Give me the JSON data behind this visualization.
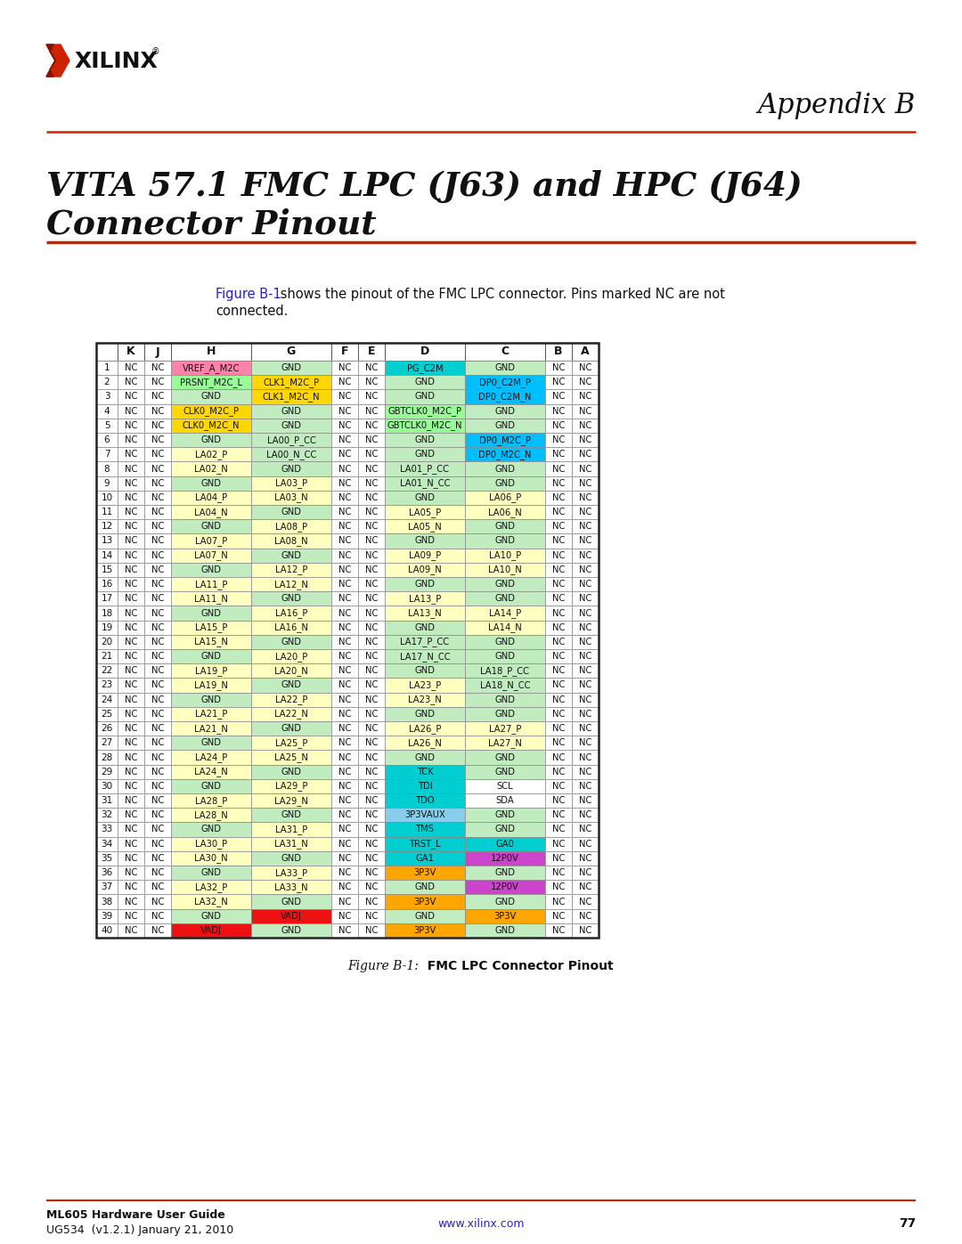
{
  "col_headers": [
    "K",
    "J",
    "H",
    "G",
    "F",
    "E",
    "D",
    "C",
    "B",
    "A"
  ],
  "rows": [
    [
      1,
      "NC",
      "NC",
      "VREF_A_M2C",
      "GND",
      "NC",
      "NC",
      "PG_C2M",
      "GND",
      "NC",
      "NC"
    ],
    [
      2,
      "NC",
      "NC",
      "PRSNT_M2C_L",
      "CLK1_M2C_P",
      "NC",
      "NC",
      "GND",
      "DP0_C2M_P",
      "NC",
      "NC"
    ],
    [
      3,
      "NC",
      "NC",
      "GND",
      "CLK1_M2C_N",
      "NC",
      "NC",
      "GND",
      "DP0_C2M_N",
      "NC",
      "NC"
    ],
    [
      4,
      "NC",
      "NC",
      "CLK0_M2C_P",
      "GND",
      "NC",
      "NC",
      "GBTCLK0_M2C_P",
      "GND",
      "NC",
      "NC"
    ],
    [
      5,
      "NC",
      "NC",
      "CLK0_M2C_N",
      "GND",
      "NC",
      "NC",
      "GBTCLK0_M2C_N",
      "GND",
      "NC",
      "NC"
    ],
    [
      6,
      "NC",
      "NC",
      "GND",
      "LA00_P_CC",
      "NC",
      "NC",
      "GND",
      "DP0_M2C_P",
      "NC",
      "NC"
    ],
    [
      7,
      "NC",
      "NC",
      "LA02_P",
      "LA00_N_CC",
      "NC",
      "NC",
      "GND",
      "DP0_M2C_N",
      "NC",
      "NC"
    ],
    [
      8,
      "NC",
      "NC",
      "LA02_N",
      "GND",
      "NC",
      "NC",
      "LA01_P_CC",
      "GND",
      "NC",
      "NC"
    ],
    [
      9,
      "NC",
      "NC",
      "GND",
      "LA03_P",
      "NC",
      "NC",
      "LA01_N_CC",
      "GND",
      "NC",
      "NC"
    ],
    [
      10,
      "NC",
      "NC",
      "LA04_P",
      "LA03_N",
      "NC",
      "NC",
      "GND",
      "LA06_P",
      "NC",
      "NC"
    ],
    [
      11,
      "NC",
      "NC",
      "LA04_N",
      "GND",
      "NC",
      "NC",
      "LA05_P",
      "LA06_N",
      "NC",
      "NC"
    ],
    [
      12,
      "NC",
      "NC",
      "GND",
      "LA08_P",
      "NC",
      "NC",
      "LA05_N",
      "GND",
      "NC",
      "NC"
    ],
    [
      13,
      "NC",
      "NC",
      "LA07_P",
      "LA08_N",
      "NC",
      "NC",
      "GND",
      "GND",
      "NC",
      "NC"
    ],
    [
      14,
      "NC",
      "NC",
      "LA07_N",
      "GND",
      "NC",
      "NC",
      "LA09_P",
      "LA10_P",
      "NC",
      "NC"
    ],
    [
      15,
      "NC",
      "NC",
      "GND",
      "LA12_P",
      "NC",
      "NC",
      "LA09_N",
      "LA10_N",
      "NC",
      "NC"
    ],
    [
      16,
      "NC",
      "NC",
      "LA11_P",
      "LA12_N",
      "NC",
      "NC",
      "GND",
      "GND",
      "NC",
      "NC"
    ],
    [
      17,
      "NC",
      "NC",
      "LA11_N",
      "GND",
      "NC",
      "NC",
      "LA13_P",
      "GND",
      "NC",
      "NC"
    ],
    [
      18,
      "NC",
      "NC",
      "GND",
      "LA16_P",
      "NC",
      "NC",
      "LA13_N",
      "LA14_P",
      "NC",
      "NC"
    ],
    [
      19,
      "NC",
      "NC",
      "LA15_P",
      "LA16_N",
      "NC",
      "NC",
      "GND",
      "LA14_N",
      "NC",
      "NC"
    ],
    [
      20,
      "NC",
      "NC",
      "LA15_N",
      "GND",
      "NC",
      "NC",
      "LA17_P_CC",
      "GND",
      "NC",
      "NC"
    ],
    [
      21,
      "NC",
      "NC",
      "GND",
      "LA20_P",
      "NC",
      "NC",
      "LA17_N_CC",
      "GND",
      "NC",
      "NC"
    ],
    [
      22,
      "NC",
      "NC",
      "LA19_P",
      "LA20_N",
      "NC",
      "NC",
      "GND",
      "LA18_P_CC",
      "NC",
      "NC"
    ],
    [
      23,
      "NC",
      "NC",
      "LA19_N",
      "GND",
      "NC",
      "NC",
      "LA23_P",
      "LA18_N_CC",
      "NC",
      "NC"
    ],
    [
      24,
      "NC",
      "NC",
      "GND",
      "LA22_P",
      "NC",
      "NC",
      "LA23_N",
      "GND",
      "NC",
      "NC"
    ],
    [
      25,
      "NC",
      "NC",
      "LA21_P",
      "LA22_N",
      "NC",
      "NC",
      "GND",
      "GND",
      "NC",
      "NC"
    ],
    [
      26,
      "NC",
      "NC",
      "LA21_N",
      "GND",
      "NC",
      "NC",
      "LA26_P",
      "LA27_P",
      "NC",
      "NC"
    ],
    [
      27,
      "NC",
      "NC",
      "GND",
      "LA25_P",
      "NC",
      "NC",
      "LA26_N",
      "LA27_N",
      "NC",
      "NC"
    ],
    [
      28,
      "NC",
      "NC",
      "LA24_P",
      "LA25_N",
      "NC",
      "NC",
      "GND",
      "GND",
      "NC",
      "NC"
    ],
    [
      29,
      "NC",
      "NC",
      "LA24_N",
      "GND",
      "NC",
      "NC",
      "TCK",
      "GND",
      "NC",
      "NC"
    ],
    [
      30,
      "NC",
      "NC",
      "GND",
      "LA29_P",
      "NC",
      "NC",
      "TDI",
      "SCL",
      "NC",
      "NC"
    ],
    [
      31,
      "NC",
      "NC",
      "LA28_P",
      "LA29_N",
      "NC",
      "NC",
      "TDO",
      "SDA",
      "NC",
      "NC"
    ],
    [
      32,
      "NC",
      "NC",
      "LA28_N",
      "GND",
      "NC",
      "NC",
      "3P3VAUX",
      "GND",
      "NC",
      "NC"
    ],
    [
      33,
      "NC",
      "NC",
      "GND",
      "LA31_P",
      "NC",
      "NC",
      "TMS",
      "GND",
      "NC",
      "NC"
    ],
    [
      34,
      "NC",
      "NC",
      "LA30_P",
      "LA31_N",
      "NC",
      "NC",
      "TRST_L",
      "GA0",
      "NC",
      "NC"
    ],
    [
      35,
      "NC",
      "NC",
      "LA30_N",
      "GND",
      "NC",
      "NC",
      "GA1",
      "12P0V",
      "NC",
      "NC"
    ],
    [
      36,
      "NC",
      "NC",
      "GND",
      "LA33_P",
      "NC",
      "NC",
      "3P3V",
      "GND",
      "NC",
      "NC"
    ],
    [
      37,
      "NC",
      "NC",
      "LA32_P",
      "LA33_N",
      "NC",
      "NC",
      "GND",
      "12P0V",
      "NC",
      "NC"
    ],
    [
      38,
      "NC",
      "NC",
      "LA32_N",
      "GND",
      "NC",
      "NC",
      "3P3V",
      "GND",
      "NC",
      "NC"
    ],
    [
      39,
      "NC",
      "NC",
      "GND",
      "VADJ",
      "NC",
      "NC",
      "GND",
      "3P3V",
      "NC",
      "NC"
    ],
    [
      40,
      "NC",
      "NC",
      "VADJ",
      "GND",
      "NC",
      "NC",
      "3P3V",
      "GND",
      "NC",
      "NC"
    ]
  ],
  "cell_colors": {
    "1_H": "#FF82AB",
    "2_H": "#98FB98",
    "2_G": "#FFD700",
    "3_G": "#FFD700",
    "4_H": "#FFD700",
    "5_H": "#FFD700",
    "1_D": "#00CED1",
    "4_D": "#98FB98",
    "5_D": "#98FB98",
    "2_C": "#00BFFF",
    "3_C": "#00BFFF",
    "6_C": "#00BFFF",
    "7_C": "#00BFFF",
    "29_D": "#00CED1",
    "30_D": "#00CED1",
    "31_D": "#00CED1",
    "32_D": "#87CEEB",
    "33_D": "#00CED1",
    "34_D": "#00CED1",
    "34_C": "#00CED1",
    "35_D": "#00CED1",
    "35_C": "#CC44CC",
    "36_D": "#FFA500",
    "37_C": "#CC44CC",
    "38_D": "#FFA500",
    "39_G": "#EE1111",
    "39_C": "#FFA500",
    "40_H": "#EE1111",
    "40_D": "#FFA500"
  }
}
